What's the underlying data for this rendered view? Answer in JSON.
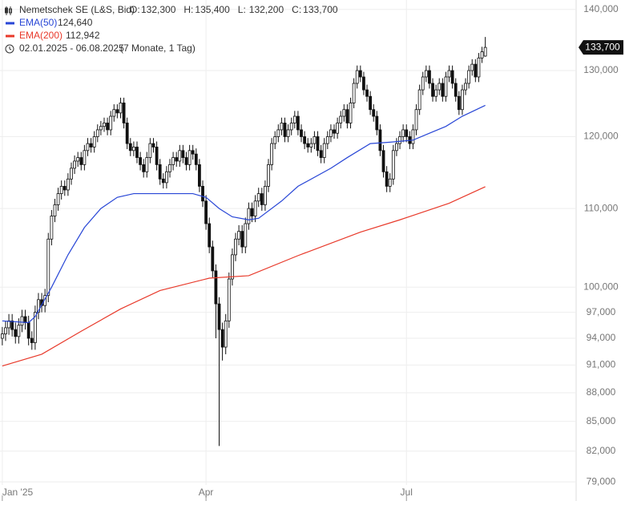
{
  "chart_data": {
    "type": "candlestick",
    "header": {
      "name": "Nemetschek SE (L&S, Bid)",
      "ohlc": [
        {
          "label": "O:",
          "value": "132,300"
        },
        {
          "label": "H:",
          "value": "135,400"
        },
        {
          "label": "L:",
          "value": "132,200"
        },
        {
          "label": "C:",
          "value": "133,700"
        }
      ],
      "date_range": "02.01.2025 - 06.08.2025",
      "period": "(7 Monate, 1 Tag)"
    },
    "last_price_label": "133,700",
    "log_scale": true,
    "grid": true,
    "ylim": [
      78.7,
      141.6
    ],
    "yticks": [
      {
        "value": 79,
        "label": "79,000"
      },
      {
        "value": 82,
        "label": "82,000"
      },
      {
        "value": 85,
        "label": "85,000"
      },
      {
        "value": 88,
        "label": "88,000"
      },
      {
        "value": 91,
        "label": "91,000"
      },
      {
        "value": 94,
        "label": "94,000"
      },
      {
        "value": 97,
        "label": "97,000"
      },
      {
        "value": 100,
        "label": "100,000"
      },
      {
        "value": 110,
        "label": "110,000"
      },
      {
        "value": 120,
        "label": "120,000"
      },
      {
        "value": 130,
        "label": "130,000"
      },
      {
        "value": 140,
        "label": "140,000"
      }
    ],
    "xlim": [
      -0.7,
      174.4
    ],
    "xticks": [
      {
        "value": 0,
        "label": "Jan '25"
      },
      {
        "value": 62,
        "label": "Apr"
      },
      {
        "value": 123,
        "label": "Jul"
      }
    ],
    "open": [
      94.0,
      94.5,
      95.2,
      96.0,
      95.0,
      94.2,
      95.5,
      96.5,
      95.8,
      94.0,
      93.5,
      97.0,
      98.5,
      97.8,
      99.0,
      106,
      109,
      110.5,
      112,
      113,
      112.5,
      114,
      115.5,
      116.5,
      117,
      116,
      118,
      119,
      118.5,
      120,
      121,
      121.5,
      122,
      121,
      123,
      124,
      123.5,
      125,
      122,
      119,
      118,
      118.5,
      117,
      116,
      115,
      117,
      119,
      118.5,
      116,
      114,
      113.5,
      115,
      116,
      117,
      116.5,
      118,
      117,
      116,
      118,
      117.5,
      116,
      113,
      111,
      108,
      105,
      102,
      98,
      95,
      93,
      96,
      101,
      104,
      106,
      107,
      105,
      108,
      110,
      109,
      111,
      112,
      110.5,
      113,
      116,
      119,
      120,
      121,
      122,
      120,
      121,
      122,
      123,
      121,
      120,
      119,
      118.5,
      119,
      120,
      118,
      117,
      119,
      120,
      121,
      120.5,
      122,
      123,
      124,
      122,
      125,
      128,
      130,
      129,
      127,
      126,
      124,
      123,
      121,
      118,
      115,
      113,
      114,
      118,
      119,
      120,
      121,
      120,
      119,
      121,
      124,
      127,
      129,
      130,
      128,
      126,
      127,
      128,
      126,
      129,
      130,
      128,
      126,
      124,
      127,
      128,
      130,
      131,
      129,
      132,
      132.3
    ],
    "high": [
      95.3,
      96.0,
      96.8,
      96.8,
      95.8,
      96.3,
      97.3,
      97.3,
      96.6,
      94.8,
      97.8,
      99.3,
      99.3,
      99.8,
      106.8,
      109.8,
      111.3,
      112.8,
      113.8,
      113.8,
      114.8,
      116.3,
      117.3,
      117.8,
      117.8,
      118.8,
      119.8,
      119.8,
      120.8,
      121.8,
      122.3,
      122.8,
      122.8,
      123.8,
      124.8,
      124.8,
      125.8,
      125.8,
      122.8,
      119.8,
      119.3,
      119.3,
      117.8,
      116.8,
      117.8,
      119.8,
      119.8,
      119.3,
      116.8,
      114.8,
      115.8,
      116.8,
      117.8,
      117.8,
      118.8,
      118.8,
      117.8,
      118.8,
      118.8,
      118.3,
      116.8,
      113.8,
      111.8,
      108.8,
      105.8,
      102.8,
      98.8,
      95.8,
      96.8,
      101.8,
      104.8,
      106.8,
      107.8,
      107.8,
      108.8,
      110.8,
      110.8,
      111.8,
      112.8,
      112.8,
      113.8,
      116.8,
      119.8,
      120.8,
      121.8,
      122.8,
      122.8,
      121.8,
      122.8,
      123.8,
      123.8,
      121.8,
      120.8,
      119.8,
      119.8,
      120.8,
      120.8,
      118.8,
      119.8,
      120.8,
      121.8,
      121.8,
      122.8,
      123.8,
      124.8,
      124.8,
      125.8,
      128.8,
      130.8,
      130.8,
      129.8,
      127.8,
      126.8,
      124.8,
      123.8,
      121.8,
      118.8,
      115.8,
      114.8,
      118.8,
      119.8,
      120.8,
      121.8,
      121.8,
      120.8,
      121.8,
      124.8,
      127.8,
      129.8,
      130.8,
      130.8,
      128.8,
      127.8,
      128.8,
      128.8,
      129.8,
      130.8,
      130.8,
      128.8,
      126.8,
      127.8,
      128.8,
      130.8,
      131.8,
      131.8,
      132.8,
      133.8,
      135.4
    ],
    "low": [
      93.2,
      93.7,
      94.4,
      94.2,
      93.4,
      93.4,
      94.7,
      95.0,
      93.2,
      92.7,
      92.7,
      96.2,
      97.0,
      97.0,
      98.2,
      105.2,
      108.2,
      109.7,
      111.2,
      111.7,
      111.7,
      113.2,
      114.7,
      115.7,
      115.2,
      115.2,
      117.2,
      117.7,
      117.7,
      119.2,
      120.2,
      120.7,
      120.2,
      120.2,
      122.2,
      122.7,
      122.7,
      121.2,
      118.2,
      117.2,
      117.2,
      116.2,
      115.2,
      114.2,
      114.2,
      116.2,
      117.7,
      115.2,
      113.2,
      112.7,
      112.7,
      114.2,
      115.2,
      115.7,
      115.7,
      116.2,
      115.2,
      115.2,
      116.7,
      115.2,
      112.2,
      110.2,
      107.2,
      104.2,
      101.2,
      94.0,
      82.5,
      91.5,
      92.2,
      95.2,
      100.2,
      103.2,
      105.2,
      104.2,
      104.2,
      107.2,
      108.2,
      108.2,
      110.2,
      109.7,
      109.7,
      112.2,
      115.2,
      118.2,
      119.2,
      120.2,
      119.2,
      119.2,
      120.2,
      121.2,
      120.2,
      119.2,
      118.2,
      117.7,
      117.7,
      118.2,
      117.2,
      116.2,
      116.2,
      118.2,
      119.2,
      119.7,
      119.7,
      121.2,
      122.2,
      121.2,
      121.2,
      124.2,
      127.2,
      128.2,
      126.2,
      125.2,
      123.2,
      122.2,
      120.2,
      117.2,
      114.2,
      112.2,
      112.2,
      113.2,
      117.2,
      118.2,
      119.2,
      119.2,
      118.2,
      118.2,
      120.2,
      123.2,
      126.2,
      128.2,
      127.2,
      125.2,
      125.2,
      126.2,
      125.2,
      125.2,
      128.2,
      127.2,
      125.2,
      123.2,
      123.2,
      126.2,
      127.2,
      129.2,
      128.2,
      128.2,
      131.2,
      132.2
    ],
    "close": [
      94.5,
      95.2,
      96.0,
      95.0,
      94.2,
      95.5,
      96.5,
      95.8,
      94.0,
      93.5,
      97.0,
      98.5,
      97.8,
      99.0,
      106,
      109,
      110.5,
      112,
      113,
      112.5,
      114,
      115.5,
      116.5,
      117,
      116,
      118,
      119,
      118.5,
      120,
      121,
      121.5,
      122,
      121,
      123,
      124,
      123.5,
      125,
      122,
      119,
      118,
      118.5,
      117,
      116,
      115,
      117,
      119,
      118.5,
      116,
      114,
      113.5,
      115,
      116,
      117,
      116.5,
      118,
      117,
      116,
      118,
      117.5,
      116,
      113,
      111,
      108,
      105,
      102,
      98,
      95,
      93,
      96,
      101,
      104,
      106,
      107,
      105,
      108,
      110,
      109,
      111,
      112,
      110.5,
      113,
      116,
      119,
      120,
      121,
      122,
      120,
      121,
      122,
      123,
      121,
      120,
      119,
      118.5,
      119,
      120,
      118,
      117,
      119,
      120,
      121,
      120.5,
      122,
      123,
      124,
      122,
      125,
      128,
      130,
      129,
      127,
      126,
      124,
      123,
      121,
      118,
      115,
      113,
      114,
      118,
      119,
      120,
      121,
      120,
      119,
      121,
      124,
      127,
      129,
      130,
      128,
      126,
      127,
      128,
      126,
      129,
      130,
      128,
      126,
      124,
      127,
      128,
      130,
      131,
      129,
      132,
      133,
      133.7
    ],
    "series": [
      {
        "name": "EMA(50)",
        "color": "#2846d6",
        "last_value_label": "124,640",
        "x": [
          0,
          8,
          10,
          15,
          20,
          25,
          30,
          35,
          40,
          50,
          58,
          62,
          66,
          70,
          75,
          78,
          85,
          90,
          100,
          105,
          112,
          118,
          125,
          130,
          135,
          140,
          147
        ],
        "values": [
          96,
          95.8,
          96.5,
          100,
          104,
          107.5,
          110,
          111.5,
          112,
          112,
          112,
          111.5,
          110,
          108.9,
          108.5,
          108.7,
          111,
          113,
          115.5,
          117,
          119,
          119.2,
          119.5,
          120.5,
          121.5,
          123,
          124.64
        ]
      },
      {
        "name": "EMA(200)",
        "color": "#e8392a",
        "last_value_label": "112,942",
        "x": [
          0,
          12,
          24,
          36,
          48,
          63,
          75,
          90,
          109,
          121,
          136,
          147
        ],
        "values": [
          90.9,
          92.2,
          94.8,
          97.4,
          99.6,
          101.1,
          101.4,
          103.9,
          106.9,
          108.5,
          110.7,
          112.942
        ]
      }
    ]
  }
}
